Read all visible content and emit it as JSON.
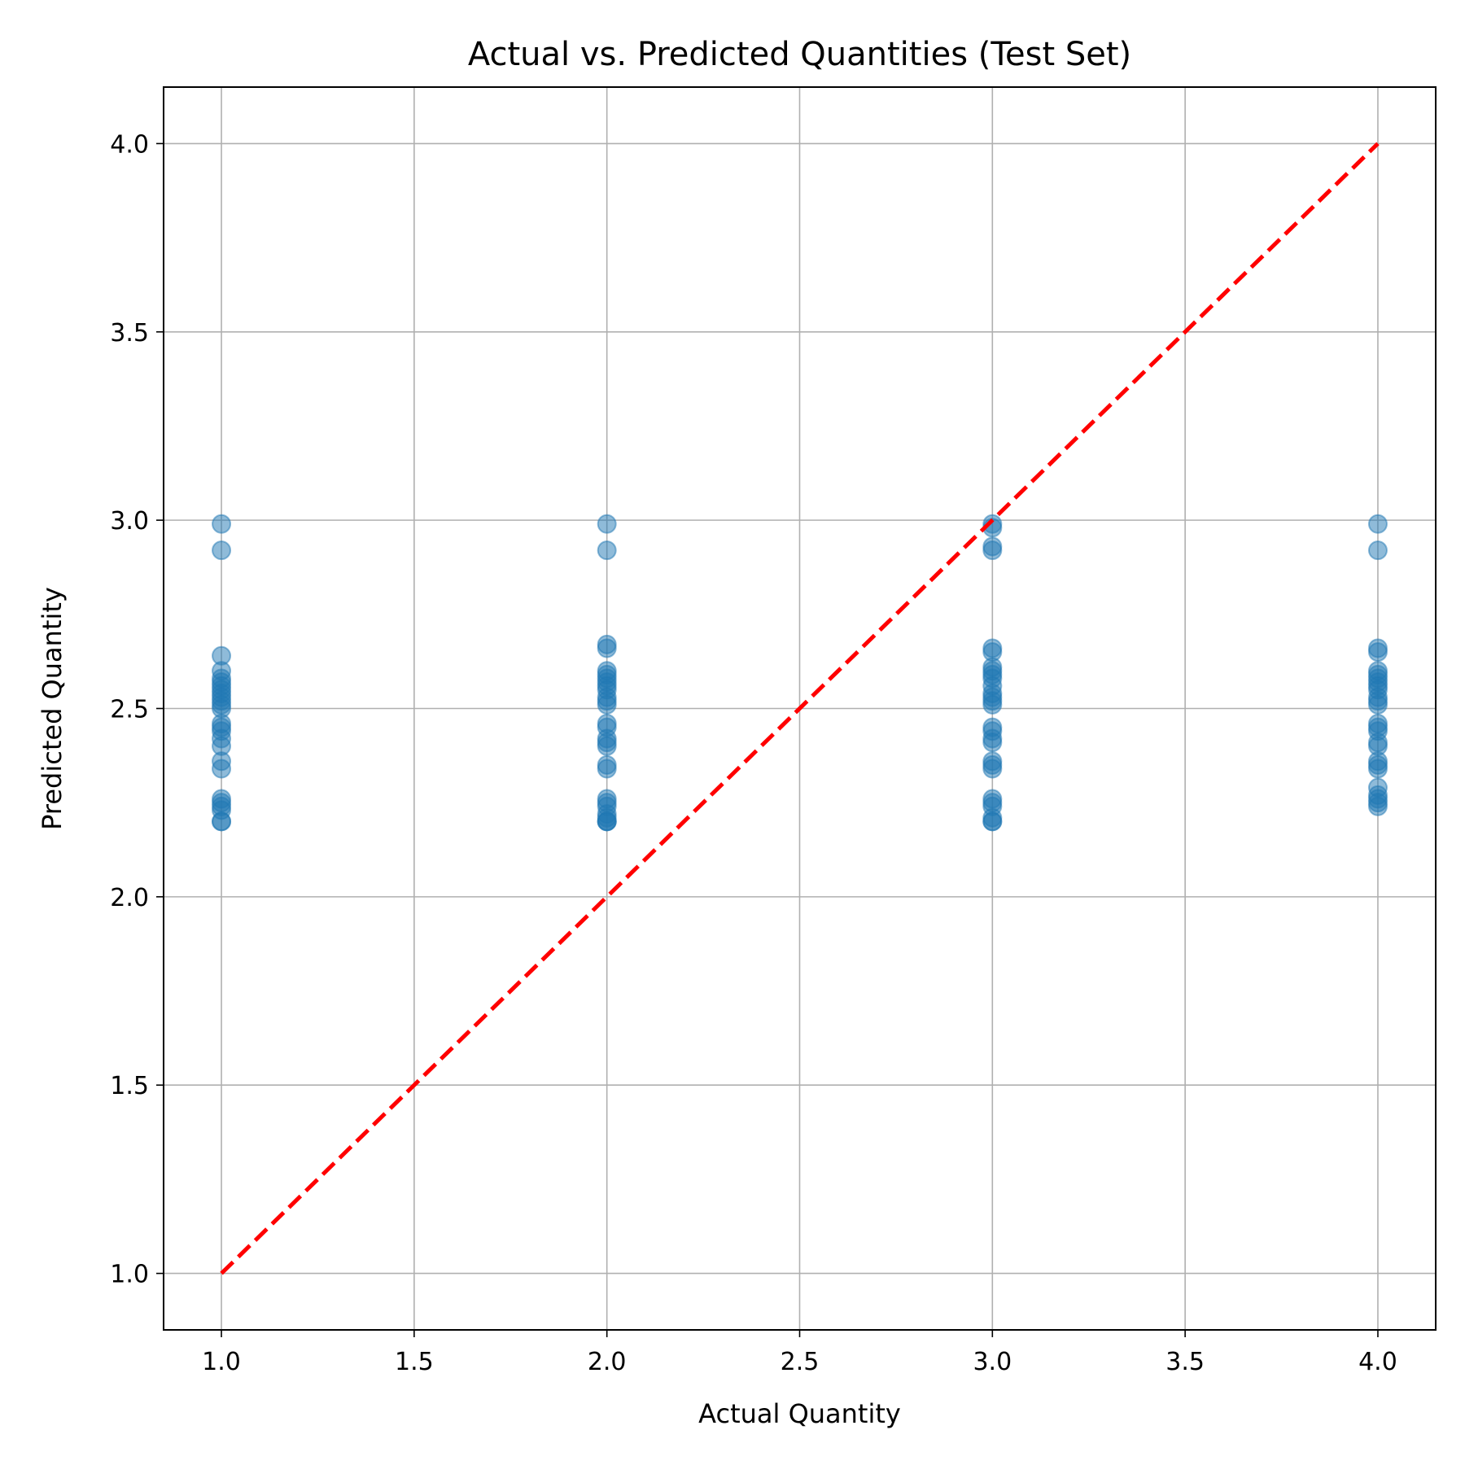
{
  "chart_data": {
    "type": "scatter",
    "title": "Actual vs. Predicted Quantities (Test Set)",
    "xlabel": "Actual Quantity",
    "ylabel": "Predicted Quantity",
    "xlim": [
      0.85,
      4.15
    ],
    "ylim": [
      0.85,
      4.15
    ],
    "xticks": [
      1.0,
      1.5,
      2.0,
      2.5,
      3.0,
      3.5,
      4.0
    ],
    "yticks": [
      1.0,
      1.5,
      2.0,
      2.5,
      3.0,
      3.5,
      4.0
    ],
    "xtick_labels": [
      "1.0",
      "1.5",
      "2.0",
      "2.5",
      "3.0",
      "3.5",
      "4.0"
    ],
    "ytick_labels": [
      "1.0",
      "1.5",
      "2.0",
      "2.5",
      "3.0",
      "3.5",
      "4.0"
    ],
    "grid": true,
    "colors": {
      "points": "#1f77b4",
      "reference_line": "#ff0000"
    },
    "reference_line": {
      "x": [
        1.0,
        4.0
      ],
      "y": [
        1.0,
        4.0
      ],
      "style": "dashed"
    },
    "series": [
      {
        "x": [
          1,
          1,
          1,
          1,
          1,
          1,
          1,
          1,
          1,
          1,
          1,
          1,
          1,
          1,
          1,
          1,
          1,
          1,
          1,
          1,
          1,
          1,
          1,
          1,
          1,
          1,
          2,
          2,
          2,
          2,
          2,
          2,
          2,
          2,
          2,
          2,
          2,
          2,
          2,
          2,
          2,
          2,
          2,
          2,
          2,
          2,
          2,
          2,
          2,
          2,
          2,
          2,
          2,
          2,
          3,
          3,
          3,
          3,
          3,
          3,
          3,
          3,
          3,
          3,
          3,
          3,
          3,
          3,
          3,
          3,
          3,
          3,
          3,
          3,
          3,
          3,
          3,
          3,
          3,
          3,
          3,
          3,
          4,
          4,
          4,
          4,
          4,
          4,
          4,
          4,
          4,
          4,
          4,
          4,
          4,
          4,
          4,
          4,
          4,
          4,
          4,
          4,
          4,
          4,
          4,
          4,
          4,
          4
        ],
        "y": [
          2.99,
          2.92,
          2.64,
          2.6,
          2.58,
          2.57,
          2.56,
          2.55,
          2.54,
          2.53,
          2.52,
          2.51,
          2.5,
          2.46,
          2.45,
          2.44,
          2.42,
          2.4,
          2.36,
          2.34,
          2.26,
          2.25,
          2.24,
          2.23,
          2.2,
          2.2,
          2.99,
          2.92,
          2.67,
          2.66,
          2.6,
          2.59,
          2.58,
          2.57,
          2.56,
          2.55,
          2.53,
          2.52,
          2.51,
          2.46,
          2.45,
          2.42,
          2.41,
          2.4,
          2.35,
          2.34,
          2.26,
          2.25,
          2.24,
          2.22,
          2.21,
          2.2,
          2.2,
          2.2,
          2.99,
          2.98,
          2.93,
          2.92,
          2.66,
          2.65,
          2.61,
          2.6,
          2.59,
          2.58,
          2.56,
          2.54,
          2.53,
          2.52,
          2.51,
          2.45,
          2.44,
          2.42,
          2.41,
          2.36,
          2.35,
          2.34,
          2.26,
          2.25,
          2.24,
          2.21,
          2.2,
          2.2,
          2.99,
          2.92,
          2.66,
          2.65,
          2.6,
          2.59,
          2.58,
          2.57,
          2.56,
          2.55,
          2.53,
          2.52,
          2.51,
          2.46,
          2.45,
          2.44,
          2.41,
          2.4,
          2.36,
          2.35,
          2.34,
          2.29,
          2.27,
          2.26,
          2.25,
          2.24
        ]
      }
    ]
  }
}
